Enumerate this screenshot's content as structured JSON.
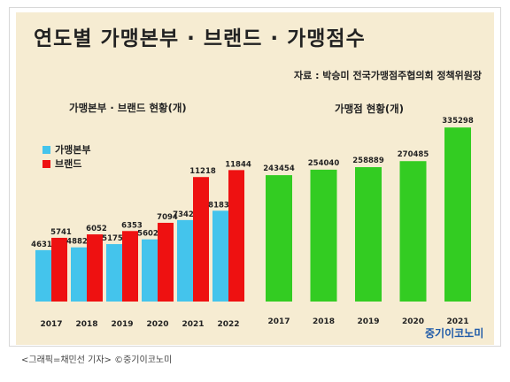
{
  "title": "연도별 가맹본부 · 브랜드 · 가맹점수",
  "source": "자료 : 박승미 전국가맹점주협의회 정책위원장",
  "logo": "중기이코노미",
  "caption": "<그래픽=채민선 기자>   ©중기이코노미",
  "colors": {
    "franchisor": "#44c4ec",
    "brand": "#ee1111",
    "store": "#33cc22",
    "background": "#f6ecd2"
  },
  "chart_data": [
    {
      "type": "bar",
      "title": "가맹본부 · 브랜드 현황(개)",
      "categories": [
        "2017",
        "2018",
        "2019",
        "2020",
        "2021",
        "2022"
      ],
      "series": [
        {
          "name": "가맹본부",
          "values": [
            4631,
            4882,
            5175,
            5602,
            7342,
            8183
          ]
        },
        {
          "name": "브랜드",
          "values": [
            5741,
            6052,
            6353,
            7094,
            11218,
            11844
          ]
        }
      ],
      "legend_position": "top-left",
      "grid": false
    },
    {
      "type": "bar",
      "title": "가맹점 현황(개)",
      "categories": [
        "2017",
        "2018",
        "2019",
        "2020",
        "2021"
      ],
      "series": [
        {
          "values": [
            243454,
            254040,
            258889,
            270485,
            335298
          ]
        }
      ],
      "grid": false
    }
  ]
}
